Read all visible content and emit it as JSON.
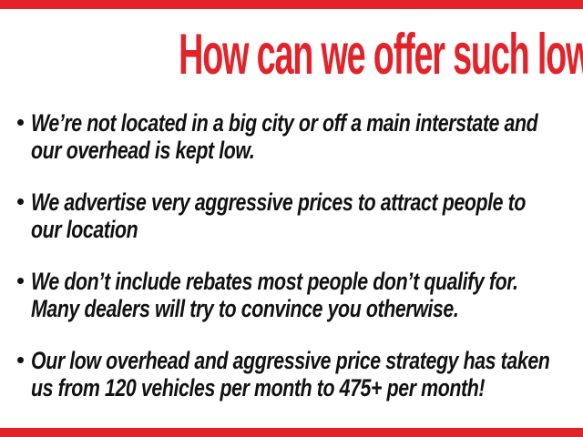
{
  "theme": {
    "accent": "#e2232a",
    "ink": "#111111",
    "background": "#ffffff"
  },
  "header": {
    "title": "How can we offer such low prices?"
  },
  "bullets": [
    {
      "line1": "We’re not located in a big city or off a main interstate and",
      "line2": "our overhead is kept low."
    },
    {
      "line1": "We advertise very aggressive prices to attract people to",
      "line2": "our location"
    },
    {
      "line1": "We don’t include rebates most people don’t qualify for.",
      "line2": "Many dealers will try to convince you otherwise."
    },
    {
      "line1": "Our low overhead and aggressive price strategy has taken",
      "line2": "us from 120 vehicles per month to 475+ per month!"
    }
  ]
}
